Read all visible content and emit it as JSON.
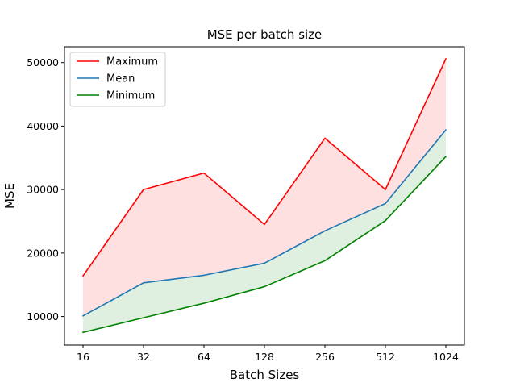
{
  "chart_data": {
    "type": "line",
    "title": "MSE per batch size",
    "xlabel": "Batch Sizes",
    "ylabel": "MSE",
    "categories": [
      "16",
      "32",
      "64",
      "128",
      "256",
      "512",
      "1024"
    ],
    "ylim": [
      5500,
      52500
    ],
    "yticks": [
      10000,
      20000,
      30000,
      40000,
      50000
    ],
    "yticklabels": [
      "10000",
      "20000",
      "30000",
      "40000",
      "50000"
    ],
    "grid": false,
    "legend_position": "top-left",
    "series": [
      {
        "name": "Maximum",
        "color": "#ff0000",
        "values": [
          16400,
          30000,
          32600,
          24500,
          38100,
          30000,
          50600
        ]
      },
      {
        "name": "Mean",
        "color": "#1f77b4",
        "values": [
          10100,
          15300,
          16500,
          18400,
          23500,
          27800,
          39400
        ]
      },
      {
        "name": "Minimum",
        "color": "#008000",
        "values": [
          7500,
          9800,
          12100,
          14700,
          18800,
          25100,
          35200
        ]
      }
    ],
    "fills": [
      {
        "between": [
          "Mean",
          "Maximum"
        ],
        "color": "#ff0000",
        "alpha": 0.12
      },
      {
        "between": [
          "Minimum",
          "Mean"
        ],
        "color": "#008000",
        "alpha": 0.12
      }
    ]
  }
}
